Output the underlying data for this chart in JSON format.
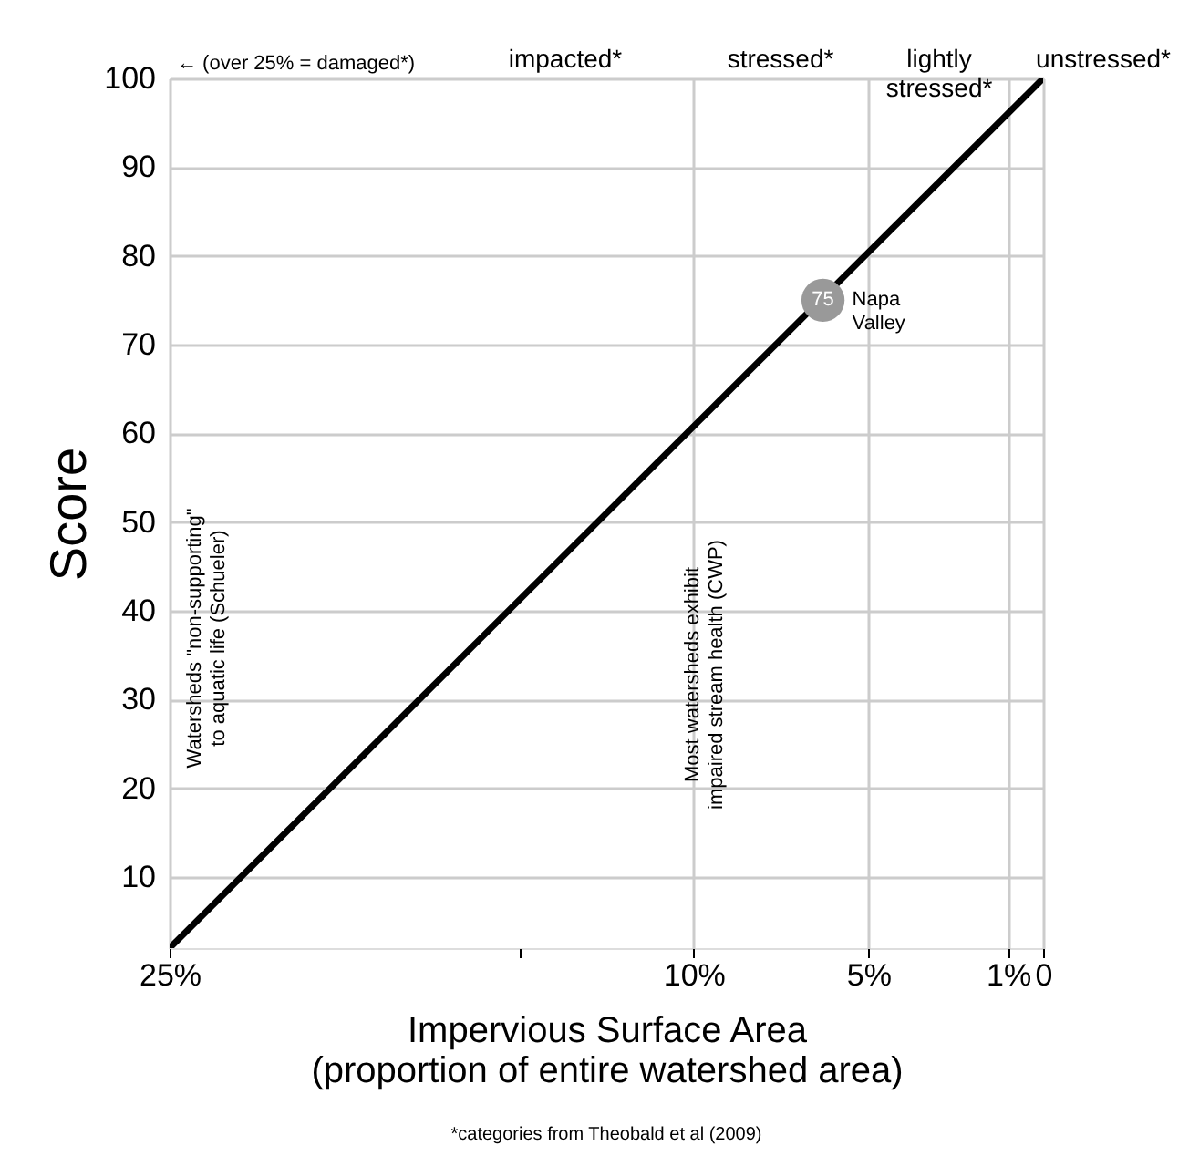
{
  "chart_data": {
    "type": "line",
    "xlabel": "Impervious Surface Area\n(proportion of entire watershed area)",
    "ylabel": "Score",
    "xlim": [
      25,
      0
    ],
    "ylim": [
      2,
      100
    ],
    "xticks": [
      {
        "value": 25,
        "label": "25%"
      },
      {
        "value": 15,
        "label": null
      },
      {
        "value": 10,
        "label": "10%"
      },
      {
        "value": 5,
        "label": "5%"
      },
      {
        "value": 1,
        "label": "1%"
      },
      0
    ],
    "yticks": [
      10,
      20,
      30,
      40,
      50,
      60,
      70,
      80,
      90,
      100
    ],
    "grid": true,
    "series": [
      {
        "color": "#000000",
        "x": [
          25,
          0
        ],
        "values": [
          2,
          100
        ],
        "marker": "none",
        "line_style": "solid"
      },
      {
        "type": "scatter",
        "name": "Napa Valley",
        "color": "#999999",
        "x": [
          6.3
        ],
        "values": [
          75
        ],
        "value_labels": [
          "75"
        ],
        "marker": "circle"
      }
    ],
    "annotations": [
      "← (over 25% = damaged*)",
      "impacted*",
      "stressed*",
      "lightly\nstressed*",
      "unstressed*",
      "Watersheds \"non-supporting\"\nto aquatic life (Schueler)",
      "Most watersheds exhibit\nimpaired stream health (CWP)",
      "*categories from Theobald et al (2009)"
    ]
  }
}
